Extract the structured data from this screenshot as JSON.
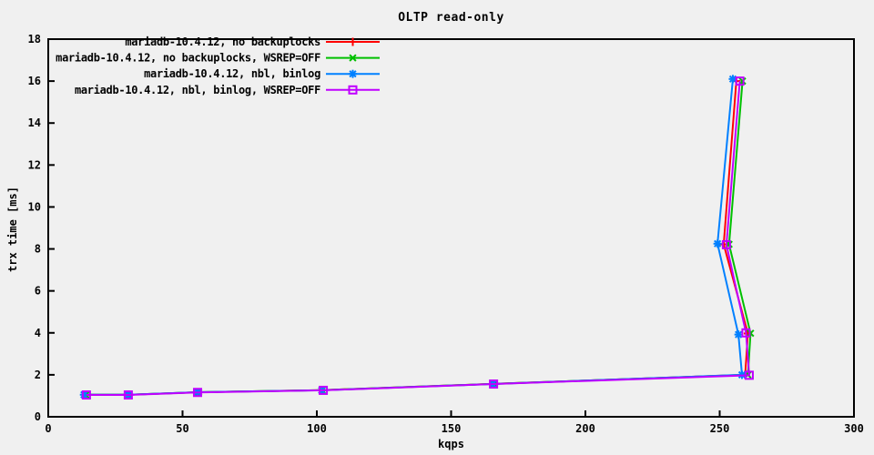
{
  "chart_data": {
    "type": "line",
    "title": "OLTP read-only",
    "xlabel": "kqps",
    "ylabel": "trx time [ms]",
    "xlim": [
      0,
      300
    ],
    "ylim": [
      0,
      18
    ],
    "xticks": [
      0,
      50,
      100,
      150,
      200,
      250,
      300
    ],
    "yticks": [
      0,
      2,
      4,
      6,
      8,
      10,
      12,
      14,
      16,
      18
    ],
    "grid": false,
    "legend_position": "top-left-inside",
    "background_color": "#f0f0f0",
    "axis_color": "#000000",
    "series": [
      {
        "name": "mariadb-10.4.12, no backuplocks",
        "color": "#ff0000",
        "marker": "plus",
        "points": [
          [
            14.0,
            1.05
          ],
          [
            30.0,
            1.05
          ],
          [
            56.0,
            1.17
          ],
          [
            102.0,
            1.27
          ],
          [
            166.0,
            1.57
          ],
          [
            259.5,
            2.0
          ],
          [
            260.5,
            3.97
          ],
          [
            251.5,
            8.22
          ],
          [
            256.2,
            16.0
          ]
        ]
      },
      {
        "name": "mariadb-10.4.12, no backuplocks, WSREP=OFF",
        "color": "#00c000",
        "marker": "cross",
        "points": [
          [
            14.0,
            1.05
          ],
          [
            30.0,
            1.05
          ],
          [
            56.0,
            1.17
          ],
          [
            102.0,
            1.27
          ],
          [
            166.0,
            1.57
          ],
          [
            260.5,
            2.0
          ],
          [
            261.5,
            3.98
          ],
          [
            253.5,
            8.22
          ],
          [
            258.5,
            16.0
          ]
        ]
      },
      {
        "name": "mariadb-10.4.12, nbl, binlog",
        "color": "#0080ff",
        "marker": "asterisk",
        "points": [
          [
            13.3,
            1.05
          ],
          [
            29.8,
            1.05
          ],
          [
            55.6,
            1.17
          ],
          [
            101.8,
            1.26
          ],
          [
            165.5,
            1.56
          ],
          [
            258.3,
            2.0
          ],
          [
            257.0,
            3.92
          ],
          [
            249.2,
            8.25
          ],
          [
            254.9,
            16.1
          ]
        ]
      },
      {
        "name": "mariadb-10.4.12, nbl, binlog, WSREP=OFF",
        "color": "#c000ff",
        "marker": "square",
        "points": [
          [
            14.2,
            1.04
          ],
          [
            29.8,
            1.04
          ],
          [
            55.6,
            1.16
          ],
          [
            102.4,
            1.26
          ],
          [
            165.8,
            1.56
          ],
          [
            261.0,
            1.98
          ],
          [
            259.8,
            4.0
          ],
          [
            252.5,
            8.2
          ],
          [
            257.5,
            16.0
          ]
        ]
      }
    ]
  }
}
